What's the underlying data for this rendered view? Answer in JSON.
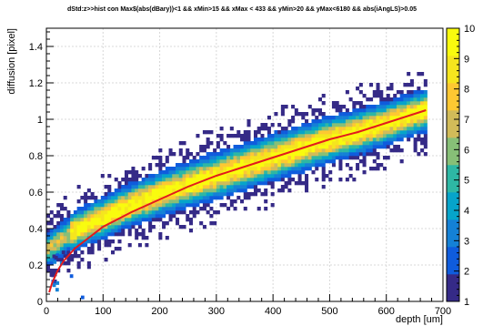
{
  "chart_data": {
    "type": "heatmap",
    "title": "dStd:z>>hist con Max$(abs(dBary))<1 && xMin>15 && xMax < 433 && yMin>20 && yMax<6180 && abs(iAngLS)>0.05",
    "xlabel": "depth [um]",
    "ylabel": "diffusion [pixel]",
    "xlim": [
      0,
      700
    ],
    "ylim": [
      0,
      1.5
    ],
    "zlim": [
      1,
      10
    ],
    "x_ticks": [
      "0",
      "100",
      "200",
      "300",
      "400",
      "500",
      "600",
      "700"
    ],
    "y_ticks": [
      "0",
      "0.2",
      "0.4",
      "0.6",
      "0.8",
      "1",
      "1.2",
      "1.4"
    ],
    "z_ticks": [
      "1",
      "2",
      "3",
      "4",
      "5",
      "6",
      "7",
      "8",
      "9",
      "10"
    ],
    "grid": true,
    "colormap": [
      "#352a87",
      "#0f5cdd",
      "#1481d6",
      "#06a4ca",
      "#2eb7a4",
      "#87bf77",
      "#d1bb59",
      "#fec832",
      "#f5e51e",
      "#f9fb0e"
    ],
    "fit_color": "#e31a1c",
    "band": {
      "x_range": [
        0,
        670
      ],
      "center": [
        [
          0,
          0.28
        ],
        [
          25,
          0.34
        ],
        [
          50,
          0.39
        ],
        [
          100,
          0.46
        ],
        [
          150,
          0.53
        ],
        [
          200,
          0.59
        ],
        [
          250,
          0.64
        ],
        [
          300,
          0.69
        ],
        [
          350,
          0.74
        ],
        [
          400,
          0.79
        ],
        [
          450,
          0.84
        ],
        [
          500,
          0.89
        ],
        [
          550,
          0.93
        ],
        [
          600,
          0.98
        ],
        [
          650,
          1.03
        ],
        [
          670,
          1.05
        ]
      ],
      "spread": [
        [
          0,
          0.08
        ],
        [
          100,
          0.09
        ],
        [
          300,
          0.1
        ],
        [
          500,
          0.1
        ],
        [
          670,
          0.09
        ]
      ]
    },
    "fit_curve": {
      "x": [
        5,
        10,
        20,
        30,
        50,
        75,
        100,
        150,
        200,
        250,
        300,
        350,
        400,
        450,
        500,
        550,
        600,
        650,
        670
      ],
      "y": [
        0.05,
        0.1,
        0.17,
        0.22,
        0.29,
        0.35,
        0.41,
        0.49,
        0.56,
        0.63,
        0.69,
        0.74,
        0.79,
        0.84,
        0.89,
        0.93,
        0.98,
        1.03,
        1.05
      ]
    }
  }
}
